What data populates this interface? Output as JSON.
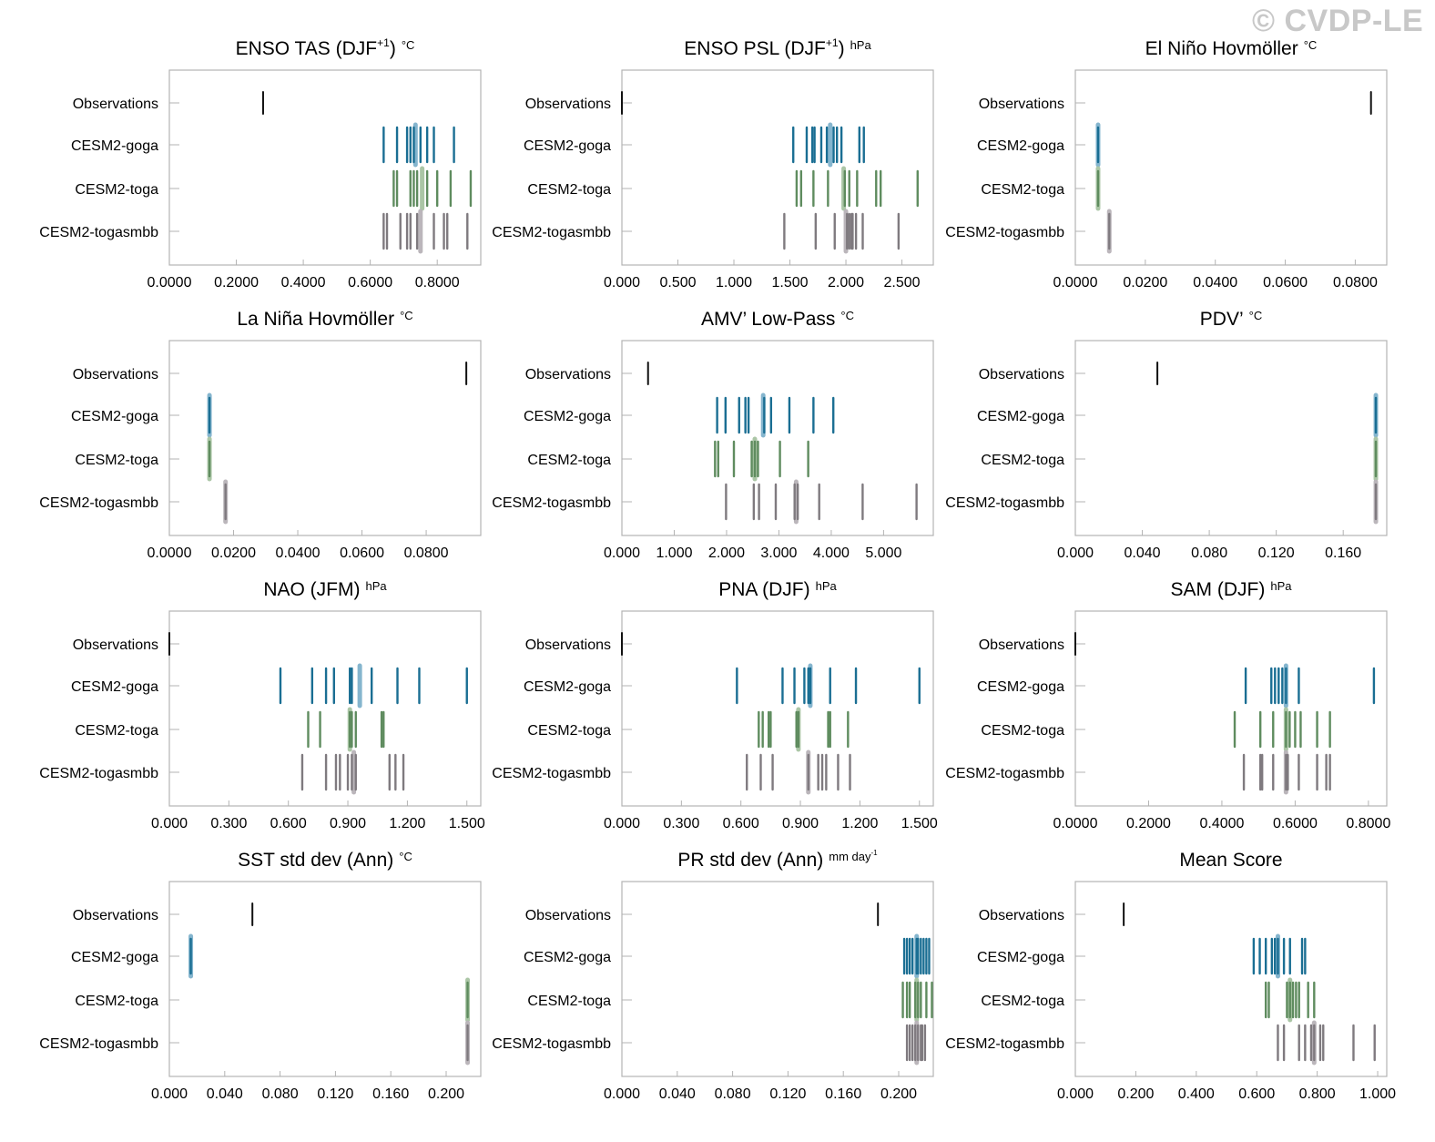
{
  "watermark": "© CVDP-LE",
  "colors": {
    "Observations": "#111111",
    "CESM2-goga": "#1a6e93",
    "CESM2-toga": "#5f8c5f",
    "CESM2-togasmbb": "#7f7a7f",
    "goga_mean": "#7fb2cc",
    "toga_mean": "#a7c3a2",
    "togasmbb_mean": "#b8b3b8",
    "frame": "#b3b3b3"
  },
  "chart_data": [
    {
      "type": "strip",
      "title": "ENSO TAS (DJF",
      "title_sup": "+1",
      "title_close": ")",
      "units": "°C",
      "rows": [
        "Observations",
        "CESM2-goga",
        "CESM2-toga",
        "CESM2-togasmbb"
      ],
      "xlim": [
        0,
        0.93
      ],
      "ticks": [
        0,
        0.2,
        0.4,
        0.6,
        0.8
      ],
      "tick_labels": [
        "0.0000",
        "0.2000",
        "0.4000",
        "0.6000",
        "0.8000"
      ],
      "series": [
        {
          "name": "Observations",
          "values": [
            0.28
          ]
        },
        {
          "name": "CESM2-goga",
          "values": [
            0.64,
            0.68,
            0.71,
            0.72,
            0.73,
            0.75,
            0.77,
            0.79,
            0.85
          ],
          "mean": 0.735
        },
        {
          "name": "CESM2-toga",
          "values": [
            0.67,
            0.68,
            0.72,
            0.73,
            0.74,
            0.77,
            0.8,
            0.84,
            0.9
          ],
          "mean": 0.755
        },
        {
          "name": "CESM2-togasmbb",
          "values": [
            0.64,
            0.65,
            0.69,
            0.71,
            0.72,
            0.74,
            0.79,
            0.82,
            0.83,
            0.89
          ],
          "mean": 0.75
        }
      ]
    },
    {
      "type": "strip",
      "title": "ENSO PSL (DJF",
      "title_sup": "+1",
      "title_close": ")",
      "units": "hPa",
      "rows": [
        "Observations",
        "CESM2-goga",
        "CESM2-toga",
        "CESM2-togasmbb"
      ],
      "xlim": [
        0,
        2.78
      ],
      "ticks": [
        0,
        0.5,
        1.0,
        1.5,
        2.0,
        2.5
      ],
      "tick_labels": [
        "0.000",
        "0.500",
        "1.000",
        "1.500",
        "2.000",
        "2.500"
      ],
      "series": [
        {
          "name": "Observations",
          "values": [
            0.0
          ]
        },
        {
          "name": "CESM2-goga",
          "values": [
            1.53,
            1.65,
            1.7,
            1.72,
            1.78,
            1.83,
            1.89,
            1.92,
            1.96,
            2.12,
            2.16
          ],
          "mean": 1.86
        },
        {
          "name": "CESM2-toga",
          "values": [
            1.56,
            1.6,
            1.71,
            1.84,
            1.99,
            2.03,
            2.1,
            2.27,
            2.31,
            2.64
          ],
          "mean": 1.98
        },
        {
          "name": "CESM2-togasmbb",
          "values": [
            1.45,
            1.73,
            1.9,
            2.01,
            2.03,
            2.05,
            2.06,
            2.09,
            2.15,
            2.47
          ],
          "mean": 2.0
        }
      ]
    },
    {
      "type": "strip",
      "title": "El Niño Hovmöller",
      "title_sup": "",
      "title_close": "",
      "units": "°C",
      "rows": [
        "Observations",
        "CESM2-goga",
        "CESM2-toga",
        "CESM2-togasmbb"
      ],
      "xlim": [
        0,
        0.089
      ],
      "ticks": [
        0,
        0.02,
        0.04,
        0.06,
        0.08
      ],
      "tick_labels": [
        "0.0000",
        "0.0200",
        "0.0400",
        "0.0600",
        "0.0800"
      ],
      "series": [
        {
          "name": "Observations",
          "values": [
            0.0845
          ]
        },
        {
          "name": "CESM2-goga",
          "values": [
            0.0065
          ],
          "mean": 0.0065
        },
        {
          "name": "CESM2-toga",
          "values": [
            0.0065
          ],
          "mean": 0.0065
        },
        {
          "name": "CESM2-togasmbb",
          "values": [
            0.0097
          ],
          "mean": 0.0097
        }
      ]
    },
    {
      "type": "strip",
      "title": "La Niña Hovmöller",
      "title_sup": "",
      "title_close": "",
      "units": "°C",
      "rows": [
        "Observations",
        "CESM2-goga",
        "CESM2-toga",
        "CESM2-togasmbb"
      ],
      "xlim": [
        0,
        0.097
      ],
      "ticks": [
        0,
        0.02,
        0.04,
        0.06,
        0.08
      ],
      "tick_labels": [
        "0.0000",
        "0.0200",
        "0.0400",
        "0.0600",
        "0.0800"
      ],
      "series": [
        {
          "name": "Observations",
          "values": [
            0.0925
          ]
        },
        {
          "name": "CESM2-goga",
          "values": [
            0.0125
          ],
          "mean": 0.0125
        },
        {
          "name": "CESM2-toga",
          "values": [
            0.0125
          ],
          "mean": 0.0125
        },
        {
          "name": "CESM2-togasmbb",
          "values": [
            0.0175
          ],
          "mean": 0.0175
        }
      ]
    },
    {
      "type": "strip",
      "title": "AMV’ Low-Pass",
      "title_sup": "",
      "title_close": "",
      "units": "°C",
      "rows": [
        "Observations",
        "CESM2-goga",
        "CESM2-toga",
        "CESM2-togasmbb"
      ],
      "xlim": [
        0,
        5.95
      ],
      "ticks": [
        0,
        1,
        2,
        3,
        4,
        5
      ],
      "tick_labels": [
        "0.000",
        "1.000",
        "2.000",
        "3.000",
        "4.000",
        "5.000"
      ],
      "series": [
        {
          "name": "Observations",
          "values": [
            0.5
          ]
        },
        {
          "name": "CESM2-goga",
          "values": [
            1.82,
            1.98,
            2.24,
            2.36,
            2.42,
            2.72,
            2.85,
            3.2,
            3.66,
            4.04
          ],
          "mean": 2.7
        },
        {
          "name": "CESM2-toga",
          "values": [
            1.78,
            1.84,
            2.14,
            2.48,
            2.54,
            2.6,
            3.02,
            3.56
          ],
          "mean": 2.54
        },
        {
          "name": "CESM2-togasmbb",
          "values": [
            1.99,
            2.52,
            2.62,
            2.94,
            3.3,
            3.36,
            3.77,
            4.6,
            5.63
          ],
          "mean": 3.33
        }
      ]
    },
    {
      "type": "strip",
      "title": "PDV’",
      "title_sup": "",
      "title_close": "",
      "units": "°C",
      "rows": [
        "Observations",
        "CESM2-goga",
        "CESM2-toga",
        "CESM2-togasmbb"
      ],
      "xlim": [
        0,
        0.186
      ],
      "ticks": [
        0,
        0.04,
        0.08,
        0.12,
        0.16
      ],
      "tick_labels": [
        "0.000",
        "0.040",
        "0.080",
        "0.120",
        "0.160"
      ],
      "series": [
        {
          "name": "Observations",
          "values": [
            0.049
          ]
        },
        {
          "name": "CESM2-goga",
          "values": [
            0.1795
          ],
          "mean": 0.1795
        },
        {
          "name": "CESM2-toga",
          "values": [
            0.1795
          ],
          "mean": 0.1795
        },
        {
          "name": "CESM2-togasmbb",
          "values": [
            0.1795
          ],
          "mean": 0.1795
        }
      ]
    },
    {
      "type": "strip",
      "title": "NAO (JFM)",
      "title_sup": "",
      "title_close": "",
      "units": "hPa",
      "rows": [
        "Observations",
        "CESM2-goga",
        "CESM2-toga",
        "CESM2-togasmbb"
      ],
      "xlim": [
        0,
        1.57
      ],
      "ticks": [
        0,
        0.3,
        0.6,
        0.9,
        1.2,
        1.5
      ],
      "tick_labels": [
        "0.000",
        "0.300",
        "0.600",
        "0.900",
        "1.200",
        "1.500"
      ],
      "series": [
        {
          "name": "Observations",
          "values": [
            0.0
          ]
        },
        {
          "name": "CESM2-goga",
          "values": [
            0.56,
            0.72,
            0.79,
            0.83,
            0.91,
            0.92,
            1.02,
            1.15,
            1.26,
            1.5
          ],
          "mean": 0.96
        },
        {
          "name": "CESM2-toga",
          "values": [
            0.7,
            0.76,
            0.91,
            0.92,
            0.94,
            1.07,
            1.08
          ],
          "mean": 0.91
        },
        {
          "name": "CESM2-togasmbb",
          "values": [
            0.67,
            0.79,
            0.84,
            0.86,
            0.9,
            0.92,
            0.94,
            1.11,
            1.14,
            1.18
          ],
          "mean": 0.93
        }
      ]
    },
    {
      "type": "strip",
      "title": "PNA (DJF)",
      "title_sup": "",
      "title_close": "",
      "units": "hPa",
      "rows": [
        "Observations",
        "CESM2-goga",
        "CESM2-toga",
        "CESM2-togasmbb"
      ],
      "xlim": [
        0,
        1.57
      ],
      "ticks": [
        0,
        0.3,
        0.6,
        0.9,
        1.2,
        1.5
      ],
      "tick_labels": [
        "0.000",
        "0.300",
        "0.600",
        "0.900",
        "1.200",
        "1.500"
      ],
      "series": [
        {
          "name": "Observations",
          "values": [
            0.0
          ]
        },
        {
          "name": "CESM2-goga",
          "values": [
            0.58,
            0.81,
            0.87,
            0.92,
            0.94,
            0.95,
            1.05,
            1.18,
            1.5
          ],
          "mean": 0.95
        },
        {
          "name": "CESM2-toga",
          "values": [
            0.69,
            0.71,
            0.74,
            0.75,
            0.88,
            0.89,
            1.04,
            1.05,
            1.14
          ],
          "mean": 0.89
        },
        {
          "name": "CESM2-togasmbb",
          "values": [
            0.63,
            0.7,
            0.76,
            0.94,
            0.99,
            1.01,
            1.03,
            1.09,
            1.15
          ],
          "mean": 0.94
        }
      ]
    },
    {
      "type": "strip",
      "title": "SAM (DJF)",
      "title_sup": "",
      "title_close": "",
      "units": "hPa",
      "rows": [
        "Observations",
        "CESM2-goga",
        "CESM2-toga",
        "CESM2-togasmbb"
      ],
      "xlim": [
        0,
        0.85
      ],
      "ticks": [
        0,
        0.2,
        0.4,
        0.6,
        0.8
      ],
      "tick_labels": [
        "0.0000",
        "0.2000",
        "0.4000",
        "0.6000",
        "0.8000"
      ],
      "series": [
        {
          "name": "Observations",
          "values": [
            0.0
          ]
        },
        {
          "name": "CESM2-goga",
          "values": [
            0.465,
            0.535,
            0.545,
            0.555,
            0.565,
            0.575,
            0.61,
            0.815
          ],
          "mean": 0.575
        },
        {
          "name": "CESM2-toga",
          "values": [
            0.435,
            0.505,
            0.54,
            0.575,
            0.585,
            0.6,
            0.615,
            0.66,
            0.695
          ],
          "mean": 0.575
        },
        {
          "name": "CESM2-togasmbb",
          "values": [
            0.46,
            0.505,
            0.51,
            0.54,
            0.575,
            0.58,
            0.61,
            0.66,
            0.685,
            0.695
          ],
          "mean": 0.575
        }
      ]
    },
    {
      "type": "strip",
      "title": "SST std dev (Ann)",
      "title_sup": "",
      "title_close": "",
      "units": "°C",
      "rows": [
        "Observations",
        "CESM2-goga",
        "CESM2-toga",
        "CESM2-togasmbb"
      ],
      "xlim": [
        0,
        0.225
      ],
      "ticks": [
        0,
        0.04,
        0.08,
        0.12,
        0.16,
        0.2
      ],
      "tick_labels": [
        "0.000",
        "0.040",
        "0.080",
        "0.120",
        "0.160",
        "0.200"
      ],
      "series": [
        {
          "name": "Observations",
          "values": [
            0.06
          ]
        },
        {
          "name": "CESM2-goga",
          "values": [
            0.0155
          ],
          "mean": 0.0155
        },
        {
          "name": "CESM2-toga",
          "values": [
            0.2155
          ],
          "mean": 0.2155
        },
        {
          "name": "CESM2-togasmbb",
          "values": [
            0.2155
          ],
          "mean": 0.2155
        }
      ]
    },
    {
      "type": "strip",
      "title": "PR std dev (Ann)",
      "title_sup": "",
      "title_close": "",
      "units": "mm day",
      "units_sup": "-1",
      "rows": [
        "Observations",
        "CESM2-goga",
        "CESM2-toga",
        "CESM2-togasmbb"
      ],
      "xlim": [
        0,
        0.225
      ],
      "ticks": [
        0,
        0.04,
        0.08,
        0.12,
        0.16,
        0.2
      ],
      "tick_labels": [
        "0.000",
        "0.040",
        "0.080",
        "0.120",
        "0.160",
        "0.200"
      ],
      "series": [
        {
          "name": "Observations",
          "values": [
            0.185
          ]
        },
        {
          "name": "CESM2-goga",
          "values": [
            0.204,
            0.206,
            0.208,
            0.21,
            0.213,
            0.214,
            0.216,
            0.218,
            0.22,
            0.222
          ],
          "mean": 0.213
        },
        {
          "name": "CESM2-toga",
          "values": [
            0.203,
            0.206,
            0.208,
            0.212,
            0.214,
            0.216,
            0.22,
            0.224
          ],
          "mean": 0.213
        },
        {
          "name": "CESM2-togasmbb",
          "values": [
            0.206,
            0.208,
            0.21,
            0.212,
            0.214,
            0.216,
            0.217,
            0.219
          ],
          "mean": 0.213
        }
      ]
    },
    {
      "type": "strip",
      "title": "Mean Score",
      "title_sup": "",
      "title_close": "",
      "units": "",
      "rows": [
        "Observations",
        "CESM2-goga",
        "CESM2-toga",
        "CESM2-togasmbb"
      ],
      "xlim": [
        0,
        1.03
      ],
      "ticks": [
        0,
        0.2,
        0.4,
        0.6,
        0.8,
        1.0
      ],
      "tick_labels": [
        "0.000",
        "0.200",
        "0.400",
        "0.600",
        "0.800",
        "1.000"
      ],
      "series": [
        {
          "name": "Observations",
          "values": [
            0.16
          ]
        },
        {
          "name": "CESM2-goga",
          "values": [
            0.59,
            0.61,
            0.63,
            0.65,
            0.66,
            0.67,
            0.69,
            0.71,
            0.75,
            0.76
          ],
          "mean": 0.67
        },
        {
          "name": "CESM2-toga",
          "values": [
            0.63,
            0.64,
            0.7,
            0.71,
            0.72,
            0.73,
            0.74,
            0.77,
            0.79
          ],
          "mean": 0.71
        },
        {
          "name": "CESM2-togasmbb",
          "values": [
            0.67,
            0.69,
            0.74,
            0.76,
            0.78,
            0.79,
            0.81,
            0.82,
            0.92,
            0.99
          ],
          "mean": 0.79
        }
      ]
    }
  ]
}
